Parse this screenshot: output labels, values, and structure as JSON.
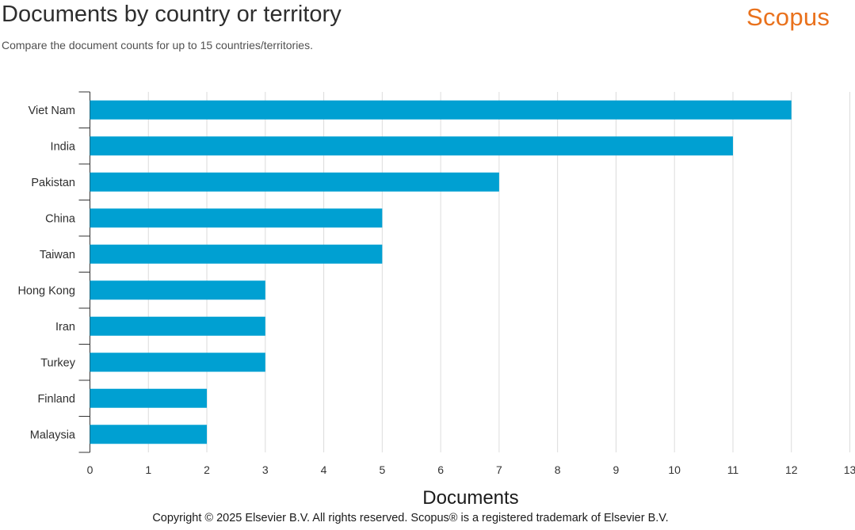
{
  "header": {
    "title": "Documents by country or territory",
    "subtitle": "Compare the document counts for up to 15 countries/territories.",
    "brand": "Scopus"
  },
  "footer": {
    "copyright": "Copyright © 2025 Elsevier B.V. All rights reserved. Scopus® is a registered trademark of Elsevier B.V."
  },
  "chart_data": {
    "type": "bar",
    "orientation": "horizontal",
    "categories": [
      "Viet Nam",
      "India",
      "Pakistan",
      "China",
      "Taiwan",
      "Hong Kong",
      "Iran",
      "Turkey",
      "Finland",
      "Malaysia"
    ],
    "values": [
      12,
      11,
      7,
      5,
      5,
      3,
      3,
      3,
      2,
      2
    ],
    "xlabel": "Documents",
    "ylabel": "",
    "xlim": [
      0,
      13
    ],
    "xticks": [
      0,
      1,
      2,
      3,
      4,
      5,
      6,
      7,
      8,
      9,
      10,
      11,
      12,
      13
    ],
    "grid": true,
    "bar_color": "#00a0d2"
  }
}
